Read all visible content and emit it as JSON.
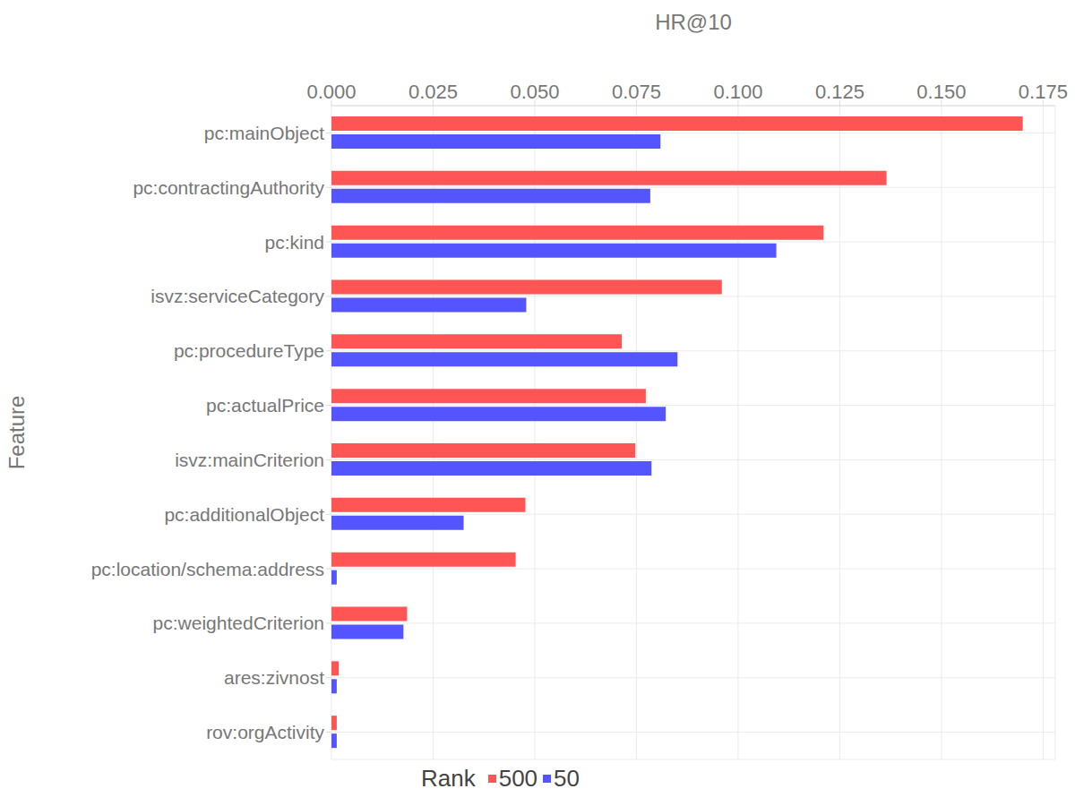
{
  "chart_data": {
    "type": "bar",
    "orientation": "horizontal",
    "x_label": "HR@10",
    "y_label": "Feature",
    "legend_title": "Rank",
    "legend": "bottom",
    "grid": true,
    "categories": [
      "pc:mainObject",
      "pc:contractingAuthority",
      "pc:kind",
      "isvz:serviceCategory",
      "pc:procedureType",
      "pc:actualPrice",
      "isvz:mainCriterion",
      "pc:additionalObject",
      "pc:location/schema:address",
      "pc:weightedCriterion",
      "ares:zivnost",
      "rov:orgActivity"
    ],
    "series": [
      {
        "name": "500",
        "color": "#ff5555",
        "values": [
          0.17,
          0.1365,
          0.121,
          0.096,
          0.0714,
          0.0773,
          0.0747,
          0.0477,
          0.0453,
          0.0186,
          0.0018,
          0.0013
        ]
      },
      {
        "name": "50",
        "color": "#5555ff",
        "values": [
          0.0809,
          0.0784,
          0.1094,
          0.0479,
          0.0851,
          0.0822,
          0.0787,
          0.0325,
          0.0013,
          0.0177,
          0.0013,
          0.0013
        ]
      }
    ],
    "xlim": [
      0,
      0.178
    ],
    "xticks": [
      {
        "value": 0,
        "label": "0.000"
      },
      {
        "value": 0.025,
        "label": "0.025"
      },
      {
        "value": 0.05,
        "label": "0.050"
      },
      {
        "value": 0.075,
        "label": "0.075"
      },
      {
        "value": 0.1,
        "label": "0.100"
      },
      {
        "value": 0.125,
        "label": "0.125"
      },
      {
        "value": 0.15,
        "label": "0.150"
      },
      {
        "value": 0.175,
        "label": "0.175"
      }
    ]
  }
}
